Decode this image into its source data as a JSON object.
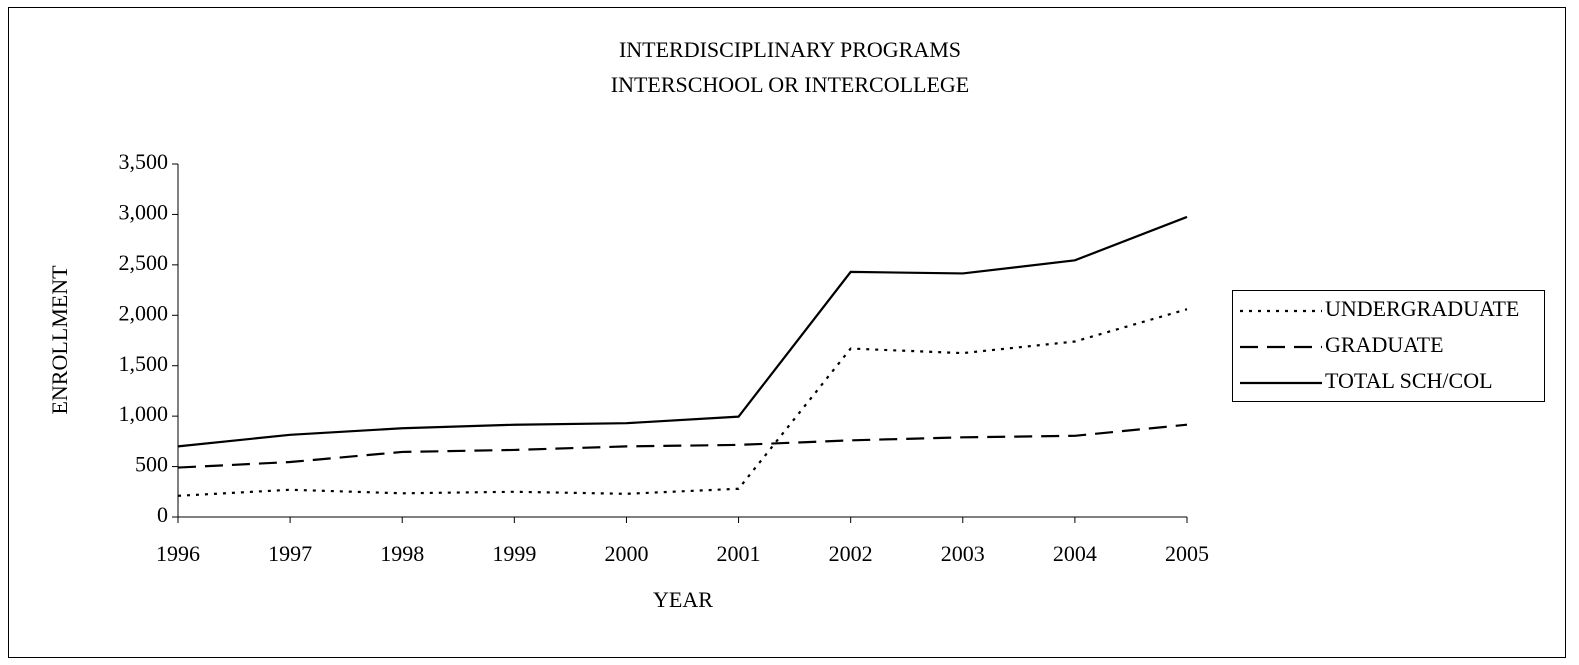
{
  "chart_data": {
    "type": "line",
    "title": [
      "INTERDISCIPLINARY PROGRAMS",
      "INTERSCHOOL OR INTERCOLLEGE"
    ],
    "x_label": "YEAR",
    "y_label": "ENROLLMENT",
    "x": [
      1996,
      1997,
      1998,
      1999,
      2000,
      2001,
      2002,
      2003,
      2004,
      2005
    ],
    "xlim": [
      1996,
      2005
    ],
    "xticks": [
      1996,
      1997,
      1998,
      1999,
      2000,
      2001,
      2002,
      2003,
      2004,
      2005
    ],
    "ylim": [
      0,
      3500
    ],
    "yticks": [
      0,
      500,
      {
        "value": 1000,
        "label": "1,000"
      },
      {
        "value": 1500,
        "label": "1,500"
      },
      {
        "value": 2000,
        "label": "2,000"
      },
      {
        "value": 2500,
        "label": "2,500"
      },
      {
        "value": 3000,
        "label": "3,000"
      },
      {
        "value": 3500,
        "label": "3,500"
      }
    ],
    "legend": "right",
    "series": [
      {
        "name": "UNDERGRADUATE",
        "color": "#000000",
        "dash": "dotted",
        "values": [
          210,
          270,
          235,
          250,
          230,
          280,
          1670,
          1625,
          1740,
          2060
        ]
      },
      {
        "name": "GRADUATE",
        "color": "#000000",
        "dash": "dashed",
        "values": [
          490,
          545,
          645,
          665,
          700,
          715,
          760,
          790,
          805,
          915
        ]
      },
      {
        "name": "TOTAL SCH/COL",
        "color": "#000000",
        "dash": "solid",
        "values": [
          700,
          815,
          880,
          915,
          930,
          995,
          2430,
          2415,
          2545,
          2975
        ]
      }
    ]
  }
}
